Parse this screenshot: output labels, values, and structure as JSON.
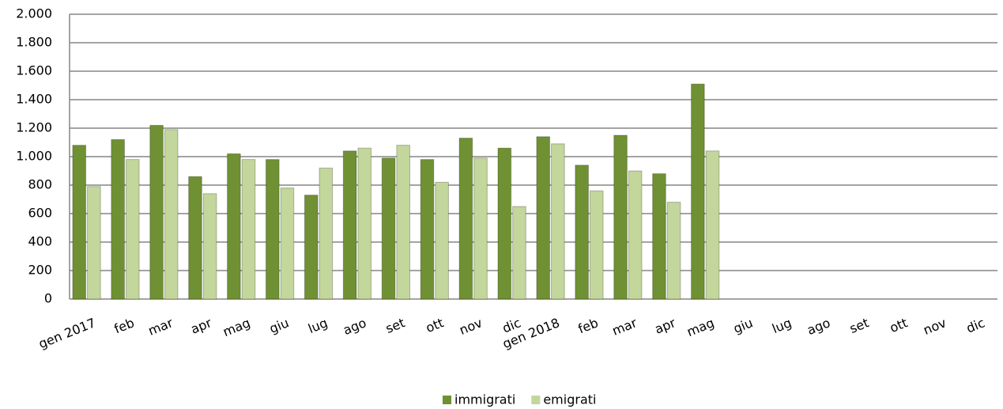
{
  "chart_data": {
    "type": "bar",
    "categories": [
      "gen 2017",
      "feb",
      "mar",
      "apr",
      "mag",
      "giu",
      "lug",
      "ago",
      "set",
      "ott",
      "nov",
      "dic",
      "gen 2018",
      "feb",
      "mar",
      "apr",
      "mag",
      "giu",
      "lug",
      "ago",
      "set",
      "ott",
      "nov",
      "dic"
    ],
    "series": [
      {
        "name": "immigrati",
        "color": "#6f9133",
        "values": [
          1080,
          1120,
          1220,
          860,
          1020,
          980,
          730,
          1040,
          990,
          980,
          1130,
          1060,
          1140,
          940,
          1150,
          880,
          1510,
          null,
          null,
          null,
          null,
          null,
          null,
          null
        ]
      },
      {
        "name": "emigrati",
        "color": "#c3d69b",
        "values": [
          790,
          980,
          1190,
          740,
          980,
          780,
          920,
          1060,
          1080,
          820,
          990,
          650,
          1090,
          760,
          900,
          680,
          1040,
          null,
          null,
          null,
          null,
          null,
          null,
          null
        ]
      }
    ],
    "ylim": [
      0,
      2000
    ],
    "yticks": [
      0,
      200,
      400,
      600,
      800,
      {
        "value": 1000,
        "label": "1.000"
      },
      {
        "value": 1200,
        "label": "1.200"
      },
      {
        "value": 1400,
        "label": "1.400"
      },
      {
        "value": 1600,
        "label": "1.600"
      },
      {
        "value": 1800,
        "label": "1.800"
      },
      {
        "value": 2000,
        "label": "2.000"
      }
    ],
    "grid": true,
    "legend": "bottom"
  }
}
